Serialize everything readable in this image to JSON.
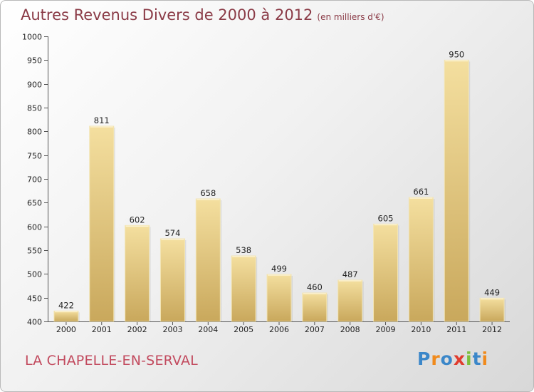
{
  "title": "Autres Revenus Divers de 2000 à 2012",
  "subtitle": "(en milliers d'€)",
  "place": "LA CHAPELLE-EN-SERVAL",
  "logo": {
    "letters": [
      {
        "ch": "P",
        "color": "#3b87c9"
      },
      {
        "ch": "r",
        "color": "#f08a1c"
      },
      {
        "ch": "o",
        "color": "#3b87c9"
      },
      {
        "ch": "x",
        "color": "#e03c2e"
      },
      {
        "ch": "i",
        "color": "#7cbf3a"
      },
      {
        "ch": "t",
        "color": "#3b87c9"
      },
      {
        "ch": "i",
        "color": "#f08a1c"
      }
    ]
  },
  "chart_data": {
    "type": "bar",
    "categories": [
      "2000",
      "2001",
      "2002",
      "2003",
      "2004",
      "2005",
      "2006",
      "2007",
      "2008",
      "2009",
      "2010",
      "2011",
      "2012"
    ],
    "values": [
      422,
      811,
      602,
      574,
      658,
      538,
      499,
      460,
      487,
      605,
      661,
      950,
      449
    ],
    "ylim": [
      400,
      1000
    ],
    "yticks": [
      400,
      450,
      500,
      550,
      600,
      650,
      700,
      750,
      800,
      850,
      900,
      950,
      1000
    ],
    "grid": false,
    "bar_color": "#e6c97c"
  }
}
